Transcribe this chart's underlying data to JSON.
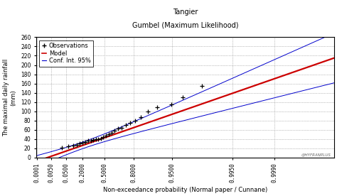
{
  "title1": "Tangier",
  "title2": "Gumbel (Maximum Likelihood)",
  "xlabel": "Non-exceedance probability (Normal paper / Cunnane)",
  "ylabel": "The maximal daily rainfall\n(mm)",
  "watermark": "@HYFRANPLUS",
  "ylim": [
    0,
    260
  ],
  "yticks": [
    0,
    20,
    40,
    60,
    80,
    100,
    120,
    140,
    160,
    180,
    200,
    220,
    240,
    260
  ],
  "xtick_probs": [
    0.0001,
    0.005,
    0.05,
    0.2,
    0.5,
    0.8,
    0.95,
    0.995,
    0.999
  ],
  "xtick_labels": [
    "0.0001",
    "0.0050",
    "0.0500",
    "0.2000",
    "0.5000",
    "0.8000",
    "0.9500",
    "0.9950",
    "0.9990"
  ],
  "legend_labels": [
    "Observations",
    "Model",
    "Conf. Int. 95%"
  ],
  "obs_x": [
    0.0283,
    0.0637,
    0.0991,
    0.1345,
    0.1699,
    0.2053,
    0.2407,
    0.2761,
    0.3115,
    0.3469,
    0.3823,
    0.4177,
    0.4531,
    0.4885,
    0.5239,
    0.5593,
    0.5947,
    0.6301,
    0.6655,
    0.7009,
    0.7363,
    0.7717,
    0.8071,
    0.8425,
    0.8779,
    0.9133,
    0.9487,
    0.9664,
    0.9841
  ],
  "obs_y": [
    22,
    24,
    26,
    28,
    30,
    32,
    34,
    36,
    37,
    38,
    39,
    40,
    42,
    44,
    47,
    50,
    54,
    58,
    62,
    65,
    70,
    75,
    80,
    88,
    100,
    108,
    115,
    130,
    155
  ],
  "model_color": "#cc0000",
  "conf_color": "#0000cc",
  "obs_color": "#000000",
  "grid_color": "#888888",
  "background_color": "#ffffff",
  "mu": 35.5,
  "beta": 19.5,
  "n_obs": 29,
  "xlim_p": [
    8e-05,
    0.9999
  ],
  "title_fontsize": 7,
  "axis_fontsize": 6,
  "tick_fontsize": 5.5,
  "legend_fontsize": 6
}
